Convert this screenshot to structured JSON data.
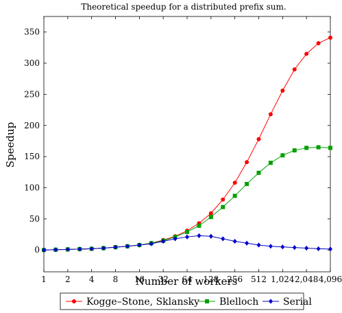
{
  "chart_data": {
    "type": "line",
    "title": "Theoretical speedup for a distributed prefix sum.",
    "xlabel": "Number of workers",
    "ylabel": "Speedup",
    "x_scale": "log2",
    "xlim": [
      1,
      4096
    ],
    "ylim": [
      -35,
      375
    ],
    "grid": false,
    "legend_position": "bottom-center",
    "x_ticks": [
      1,
      2,
      4,
      8,
      16,
      32,
      64,
      128,
      256,
      512,
      1024,
      2048,
      4096
    ],
    "x_tick_labels": [
      "1",
      "2",
      "4",
      "8",
      "16",
      "32",
      "64",
      "128",
      "256",
      "512",
      "1,024",
      "2,048",
      "4,096"
    ],
    "y_ticks": [
      0,
      50,
      100,
      150,
      200,
      250,
      300,
      350
    ],
    "y_tick_labels": [
      "0",
      "50",
      "100",
      "150",
      "200",
      "250",
      "300",
      "350"
    ],
    "x": [
      1,
      1.41,
      2,
      2.83,
      4,
      5.66,
      8,
      11.31,
      16,
      22.63,
      32,
      45.25,
      64,
      90.51,
      128,
      181.02,
      256,
      362.04,
      512,
      724.08,
      1024,
      1448.15,
      2048,
      2896.31,
      4096
    ],
    "series": [
      {
        "name": "Kogge–Stone, Sklansky",
        "color": "#ff0000",
        "marker": "circle",
        "values": [
          0,
          0.5,
          1,
          1.5,
          2,
          3,
          4.5,
          6,
          8,
          11,
          16,
          22,
          31,
          43,
          59,
          81,
          108,
          141,
          178,
          218,
          256,
          290,
          315,
          332,
          341
        ]
      },
      {
        "name": "Blelloch",
        "color": "#00a000",
        "marker": "square",
        "values": [
          0,
          0.5,
          1,
          1.5,
          2,
          3,
          4.5,
          6,
          8,
          11,
          15,
          21,
          29,
          39,
          53,
          69,
          87,
          106,
          124,
          140,
          152,
          160,
          164,
          165,
          164
        ]
      },
      {
        "name": "Serial",
        "color": "#0000c8",
        "marker": "diamond",
        "values": [
          0,
          0.5,
          1,
          1.5,
          2,
          3,
          4.5,
          6,
          8,
          10,
          14,
          18,
          21,
          23,
          22,
          18,
          14,
          11,
          8,
          6,
          5,
          4,
          3,
          2,
          1.5
        ]
      }
    ]
  }
}
